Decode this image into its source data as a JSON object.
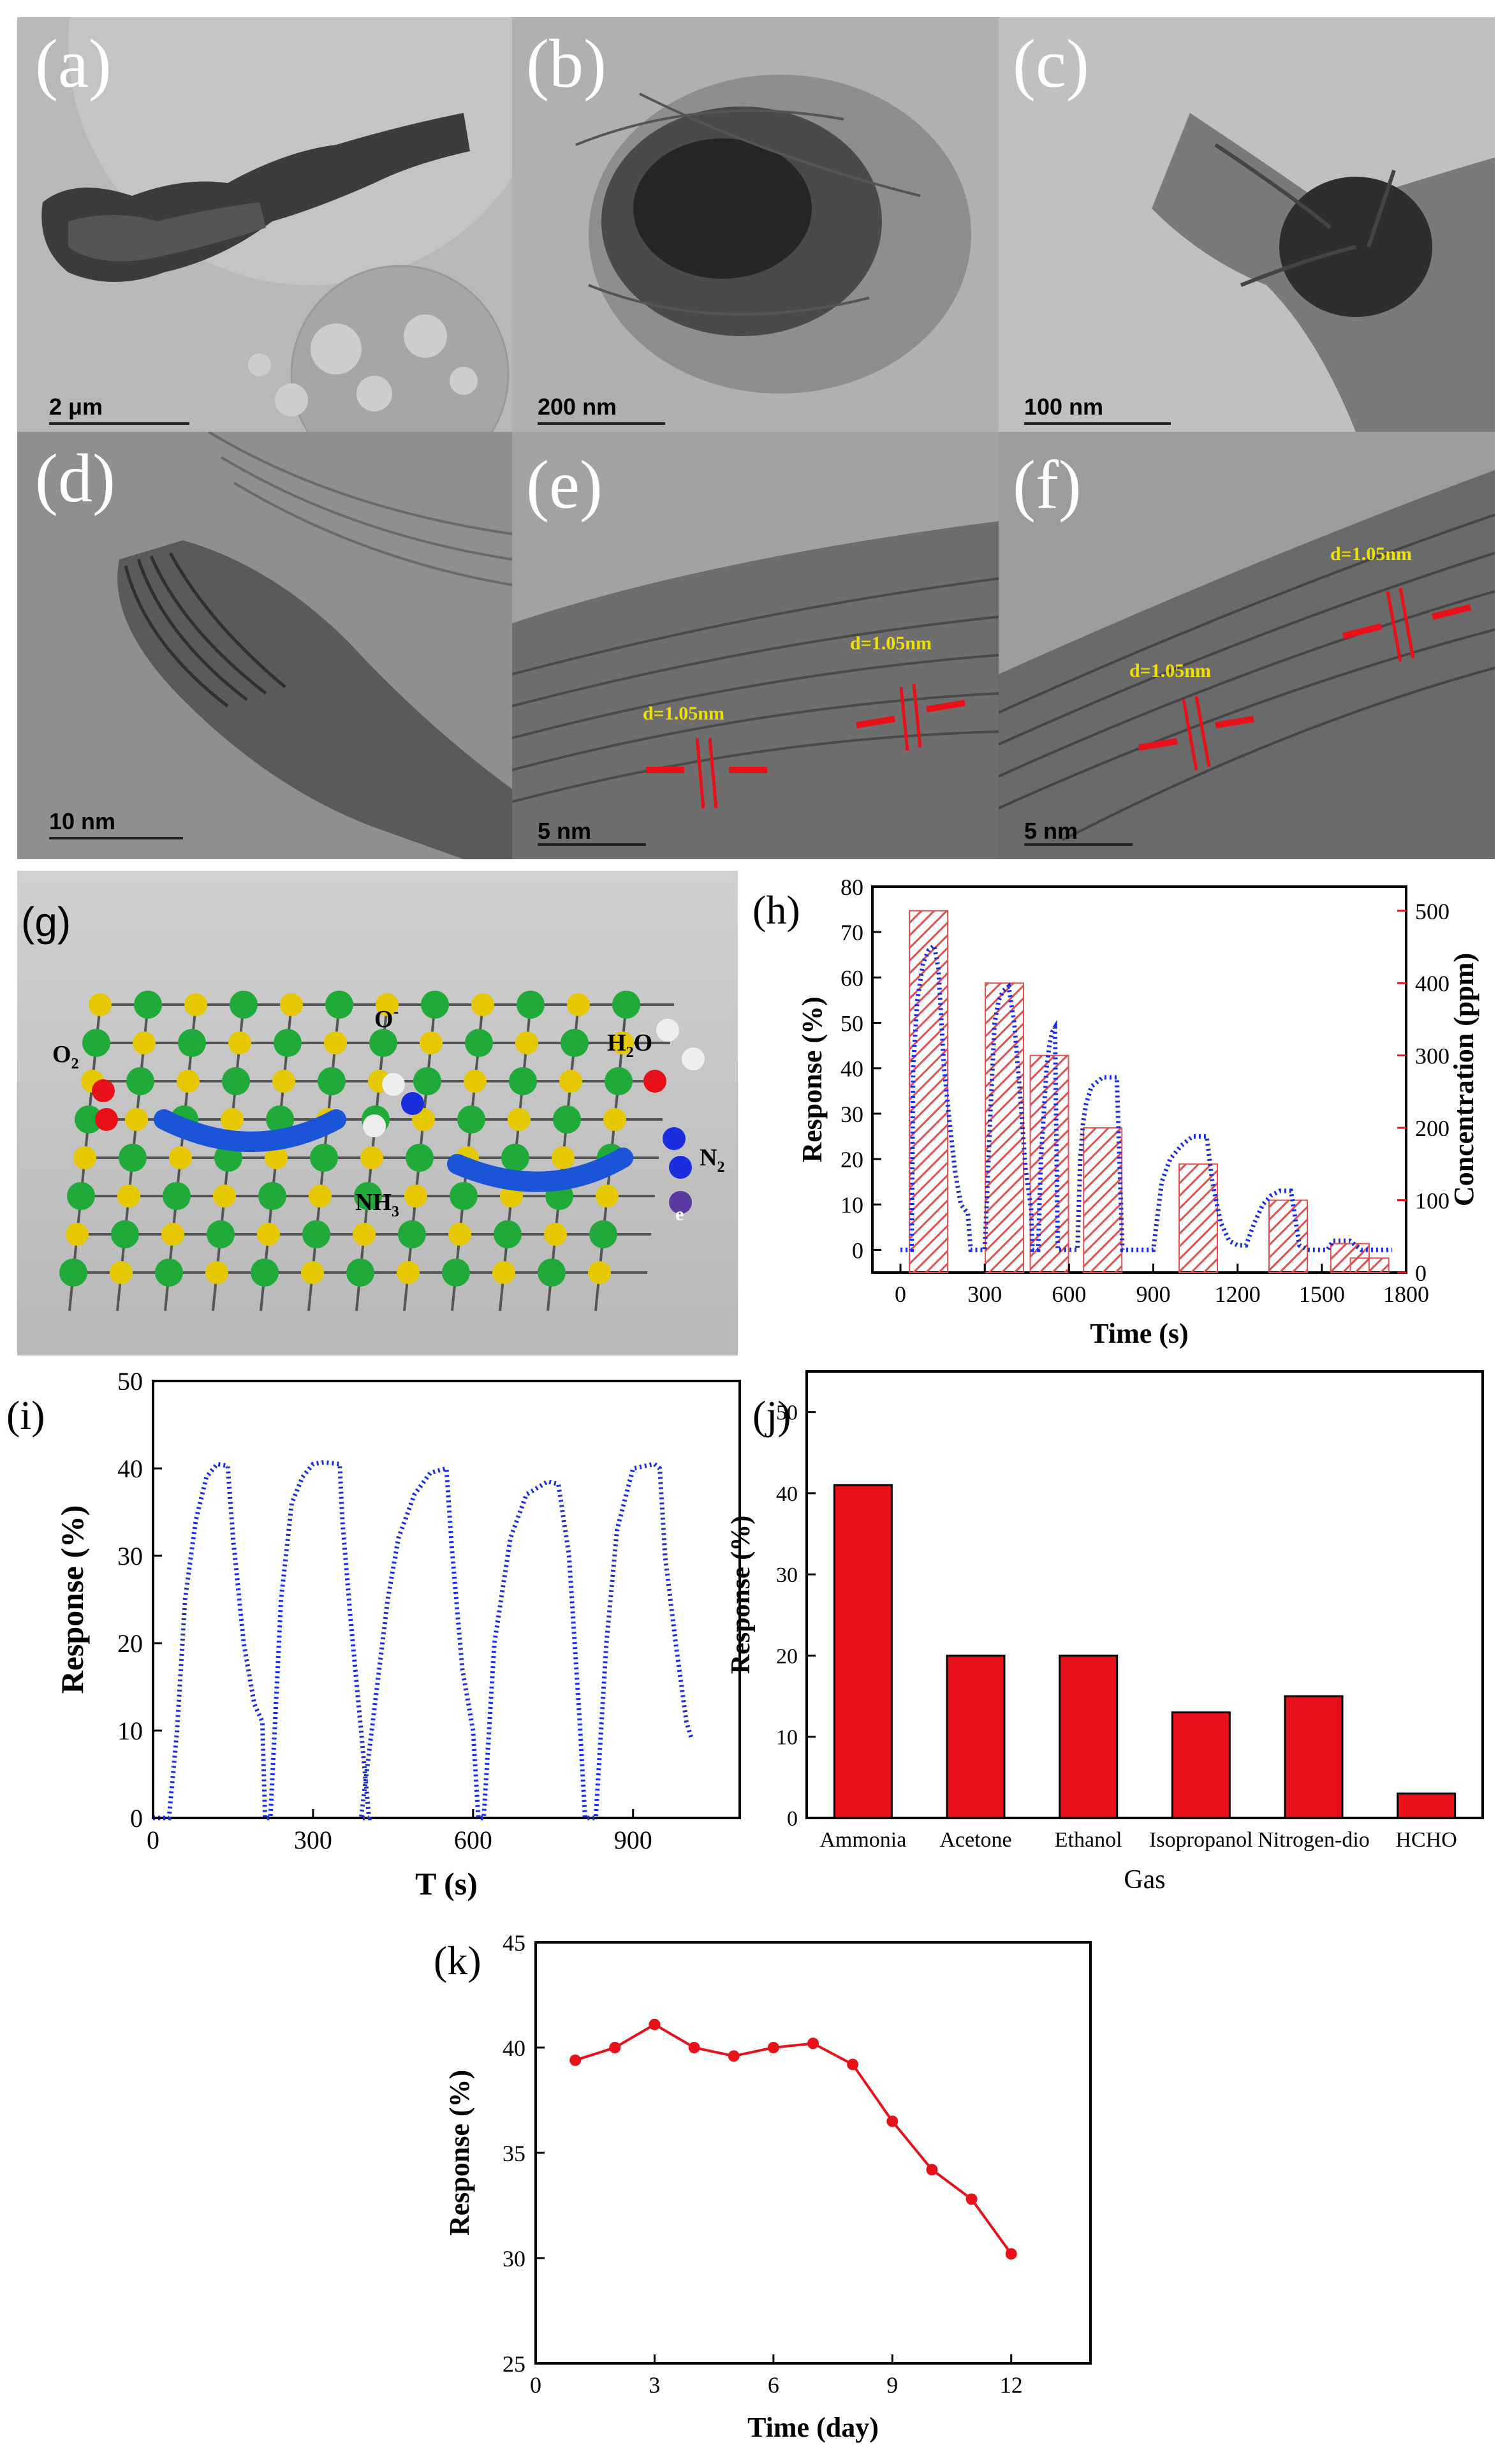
{
  "tem_panels": [
    {
      "label": "(a)",
      "scale": "2 μm"
    },
    {
      "label": "(b)",
      "scale": "200 nm"
    },
    {
      "label": "(c)",
      "scale": "100 nm"
    },
    {
      "label": "(d)",
      "scale": "10 nm"
    },
    {
      "label": "(e)",
      "scale": "5 nm",
      "spacings": [
        "d=1.05nm",
        "d=1.05nm"
      ]
    },
    {
      "label": "(f)",
      "scale": "5 nm",
      "spacings": [
        "d=1.05nm",
        "d=1.05nm"
      ]
    }
  ],
  "schematic": {
    "label": "(g)",
    "molecules": {
      "o2": "O",
      "o2_sub": "2",
      "o_minus": "O",
      "o_minus_sup": "-",
      "h2o_a": "H",
      "h2o_sub": "2",
      "h2o_b": "O",
      "nh3": "NH",
      "nh3_sub": "3",
      "n2": "N",
      "n2_sub": "2",
      "electron": "e"
    }
  },
  "colors": {
    "blue_series": "#1a2ee0",
    "red": "#e8111a",
    "hatch": "#e05050"
  },
  "chart_data": [
    {
      "panel": "(h)",
      "type": "line",
      "xlabel": "Time (s)",
      "ylabel": "Response (%)",
      "ylabel_right": "Concentration (ppm)",
      "xlim": [
        -100,
        1800
      ],
      "ylim": [
        -5,
        80
      ],
      "ylim_right": [
        0,
        533.3
      ],
      "xticks": [
        0,
        300,
        600,
        900,
        1200,
        1500,
        1800
      ],
      "yticks": [
        0,
        10,
        20,
        30,
        40,
        50,
        60,
        70,
        80
      ],
      "yticks_right": [
        0,
        100,
        200,
        300,
        400,
        500
      ],
      "series": [
        {
          "name": "Response",
          "x": [
            0,
            40,
            45,
            60,
            80,
            100,
            120,
            135,
            155,
            175,
            195,
            215,
            240,
            250,
            270,
            300,
            320,
            335,
            350,
            365,
            385,
            405,
            425,
            445,
            465,
            470,
            480,
            490,
            500,
            510,
            520,
            530,
            540,
            550,
            560,
            580,
            600,
            630,
            640,
            650,
            660,
            680,
            700,
            720,
            750,
            770,
            790,
            830,
            900,
            930,
            960,
            1000,
            1040,
            1070,
            1090,
            1110,
            1140,
            1170,
            1200,
            1230,
            1260,
            1290,
            1320,
            1350,
            1390,
            1420,
            1450,
            1520,
            1540,
            1600,
            1640,
            1700,
            1750
          ],
          "y": [
            0,
            0,
            40,
            55,
            63,
            66,
            67,
            62,
            40,
            28,
            17,
            10,
            8,
            0,
            0,
            0,
            30,
            50,
            55,
            57,
            58,
            50,
            35,
            18,
            9,
            0,
            0,
            0,
            20,
            30,
            40,
            45,
            48,
            49,
            0,
            0,
            0,
            0,
            20,
            28,
            32,
            36,
            37,
            38,
            38,
            38,
            0,
            0,
            0,
            15,
            20,
            23,
            25,
            25,
            25,
            15,
            6,
            2,
            1,
            1,
            6,
            10,
            12,
            13,
            13,
            1,
            0,
            0,
            2,
            2,
            0,
            0,
            0
          ]
        },
        {
          "name": "Concentration",
          "type": "bar",
          "x": [
            100,
            370,
            530,
            720,
            1060,
            1380,
            1600,
            1670
          ],
          "values": [
            500,
            400,
            300,
            200,
            150,
            100,
            40,
            20
          ]
        }
      ]
    },
    {
      "panel": "(i)",
      "type": "line",
      "xlabel": "T (s)",
      "ylabel": "Response (%)",
      "xlim": [
        0,
        1100
      ],
      "ylim": [
        0,
        50
      ],
      "xticks": [
        0,
        300,
        600,
        900
      ],
      "yticks": [
        0,
        10,
        20,
        30,
        40,
        50
      ],
      "series": [
        {
          "name": "Response",
          "x": [
            0,
            30,
            45,
            60,
            80,
            100,
            120,
            140,
            150,
            170,
            190,
            205,
            210,
            220,
            240,
            260,
            280,
            300,
            320,
            350,
            355,
            370,
            390,
            405,
            390,
            420,
            440,
            460,
            490,
            520,
            550,
            560,
            580,
            600,
            610,
            620,
            640,
            670,
            700,
            740,
            760,
            780,
            800,
            810,
            830,
            850,
            870,
            900,
            940,
            950,
            960,
            980,
            1000,
            1010
          ],
          "y": [
            0,
            0,
            10,
            25,
            34,
            39,
            40.5,
            40.3,
            32,
            20,
            13,
            11,
            0,
            0,
            25,
            36,
            39,
            40.5,
            40.7,
            40.5,
            34,
            23,
            10,
            0,
            0,
            15,
            25,
            32,
            37,
            39.5,
            40,
            31,
            17,
            10,
            0,
            0,
            20,
            32,
            37,
            38.5,
            38.2,
            30,
            11,
            0,
            0,
            20,
            33,
            40,
            40.5,
            40,
            30,
            20,
            11,
            9
          ]
        }
      ]
    },
    {
      "panel": "(j)",
      "type": "bar",
      "xlabel": "Gas",
      "ylabel": "Response (%)",
      "ylim": [
        0,
        55
      ],
      "yticks": [
        0,
        10,
        20,
        30,
        40,
        50
      ],
      "categories": [
        "Ammonia",
        "Acetone",
        "Ethanol",
        "Isopropanol",
        "Nitrogen-dio",
        "HCHO"
      ],
      "values": [
        41,
        20,
        20,
        13,
        15,
        3
      ]
    },
    {
      "panel": "(k)",
      "type": "line",
      "xlabel": "Time (day)",
      "ylabel": "Response (%)",
      "xlim": [
        0,
        14
      ],
      "ylim": [
        25,
        45
      ],
      "xticks": [
        0,
        3,
        6,
        9,
        12
      ],
      "yticks": [
        25,
        30,
        35,
        40,
        45
      ],
      "x": [
        1,
        2,
        3,
        4,
        5,
        6,
        7,
        8,
        9,
        10,
        11,
        12
      ],
      "values": [
        39.4,
        40.0,
        41.1,
        40.0,
        39.6,
        40.0,
        40.2,
        39.2,
        36.5,
        34.2,
        32.8,
        30.2
      ]
    }
  ]
}
